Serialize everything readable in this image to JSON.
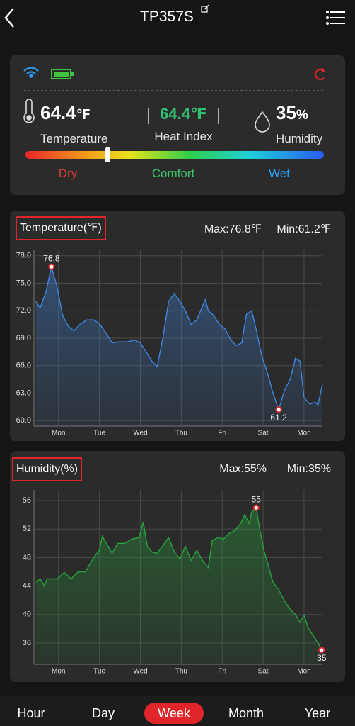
{
  "header": {
    "title": "TP357S"
  },
  "current": {
    "temperature": {
      "value": "64.4",
      "unit": "℉",
      "label": "Temperature"
    },
    "heat_index": {
      "value": "64.4℉",
      "label": "Heat Index"
    },
    "humidity": {
      "value": "35",
      "unit": "%",
      "label": "Humidity"
    },
    "comfort_scale": [
      "Dry",
      "Comfort",
      "Wet"
    ]
  },
  "chart_data": [
    {
      "type": "line",
      "title": "Temperature(℉)",
      "max_label": "Max:76.8℉",
      "min_label": "Min:61.2℉",
      "color": "#3f86e0",
      "area": true,
      "grid": true,
      "xlim": [
        -0.6,
        6.45
      ],
      "xticks": [
        {
          "value": 0,
          "label": "Mon"
        },
        {
          "value": 1,
          "label": "Tue"
        },
        {
          "value": 2,
          "label": "Wed"
        },
        {
          "value": 3,
          "label": "Thu"
        },
        {
          "value": 4,
          "label": "Fri"
        },
        {
          "value": 5,
          "label": "Sat"
        },
        {
          "value": 6,
          "label": "Mon"
        }
      ],
      "ylim": [
        59.4,
        78.6
      ],
      "yticks": [
        {
          "value": 60,
          "label": "60.0"
        },
        {
          "value": 63,
          "label": "63.0"
        },
        {
          "value": 66,
          "label": "66.0"
        },
        {
          "value": 69,
          "label": "69.0"
        },
        {
          "value": 72,
          "label": "72.0"
        },
        {
          "value": 75,
          "label": "75.0"
        },
        {
          "value": 78,
          "label": "78.0"
        }
      ],
      "x": [
        -0.55,
        -0.45,
        -0.31,
        -0.17,
        -0.03,
        0.1,
        0.24,
        0.38,
        0.52,
        0.69,
        0.86,
        1.0,
        1.17,
        1.31,
        1.48,
        1.69,
        1.86,
        2.0,
        2.14,
        2.28,
        2.41,
        2.55,
        2.69,
        2.83,
        2.97,
        3.1,
        3.24,
        3.38,
        3.52,
        3.59,
        3.66,
        3.79,
        3.93,
        4.07,
        4.21,
        4.34,
        4.48,
        4.59,
        4.72,
        4.83,
        4.97,
        5.1,
        5.24,
        5.38,
        5.52,
        5.66,
        5.79,
        5.9,
        6.0,
        6.14,
        6.28,
        6.34,
        6.45
      ],
      "values": [
        73.0,
        72.3,
        74.0,
        76.8,
        74.5,
        71.5,
        70.3,
        69.8,
        70.5,
        71.0,
        71.0,
        70.6,
        69.5,
        68.5,
        68.6,
        68.6,
        68.8,
        68.5,
        67.5,
        66.5,
        65.9,
        69.0,
        73.0,
        73.9,
        73.0,
        72.0,
        70.5,
        71.0,
        72.5,
        73.2,
        72.0,
        71.5,
        70.5,
        70.0,
        68.8,
        68.2,
        68.5,
        71.6,
        72.0,
        70.0,
        67.0,
        65.3,
        63.0,
        61.2,
        63.3,
        64.5,
        66.8,
        66.5,
        62.5,
        61.8,
        62.0,
        61.7,
        64.0
      ]
    },
    {
      "type": "line",
      "title": "Humidity(%)",
      "max_label": "Max:55%",
      "min_label": "Min:35%",
      "color": "#27a33c",
      "area": true,
      "grid": true,
      "xlim": [
        -0.6,
        6.45
      ],
      "xticks": [
        {
          "value": 0,
          "label": "Mon"
        },
        {
          "value": 1,
          "label": "Tue"
        },
        {
          "value": 2,
          "label": "Wed"
        },
        {
          "value": 3,
          "label": "Thu"
        },
        {
          "value": 4,
          "label": "Fri"
        },
        {
          "value": 5,
          "label": "Sat"
        },
        {
          "value": 6,
          "label": "Mon"
        }
      ],
      "ylim": [
        33,
        57.5
      ],
      "yticks": [
        36,
        40,
        44,
        48,
        52,
        56
      ],
      "x": [
        -0.55,
        -0.45,
        -0.34,
        -0.28,
        -0.03,
        0.14,
        0.31,
        0.48,
        0.66,
        0.76,
        0.86,
        1.0,
        1.07,
        1.17,
        1.31,
        1.45,
        1.62,
        1.79,
        1.97,
        2.07,
        2.17,
        2.28,
        2.41,
        2.59,
        2.69,
        2.83,
        2.97,
        3.1,
        3.24,
        3.38,
        3.52,
        3.66,
        3.76,
        3.9,
        4.03,
        4.17,
        4.31,
        4.45,
        4.55,
        4.66,
        4.72,
        4.83,
        4.93,
        5.03,
        5.14,
        5.24,
        5.38,
        5.52,
        5.66,
        5.79,
        5.9,
        6.0,
        6.1,
        6.24,
        6.34,
        6.43
      ],
      "values": [
        44.5,
        45,
        44,
        45,
        45,
        45.9,
        45,
        46,
        46,
        47,
        48,
        49,
        51,
        50,
        48.6,
        50,
        50,
        50.6,
        50.8,
        53,
        49.6,
        48.8,
        48.6,
        50,
        50.8,
        48.8,
        47.8,
        49.6,
        47.6,
        49,
        47.6,
        46.6,
        50.4,
        50.8,
        50.6,
        51.4,
        51.8,
        52.8,
        54,
        52.8,
        54.4,
        55,
        51.6,
        48.8,
        46.6,
        44.5,
        43.5,
        41.9,
        40.7,
        40,
        38.9,
        39.9,
        38.1,
        36.9,
        36,
        35
      ]
    }
  ],
  "tabs": {
    "items": [
      "Hour",
      "Day",
      "Week",
      "Month",
      "Year"
    ],
    "selected": 2
  }
}
